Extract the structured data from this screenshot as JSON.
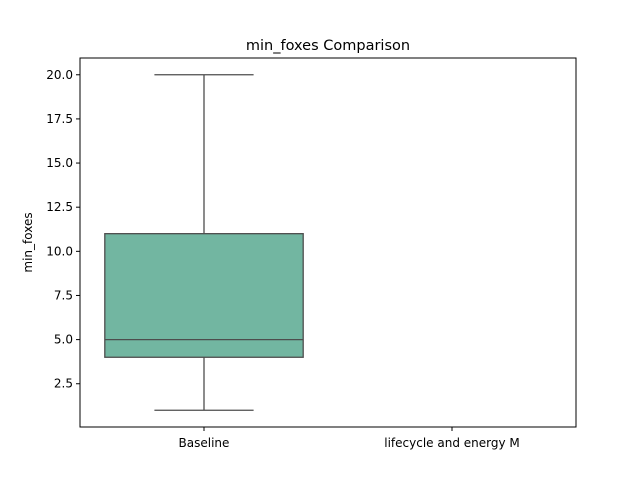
{
  "chart_data": {
    "type": "box",
    "title": "min_foxes Comparison",
    "xlabel": "",
    "ylabel": "min_foxes",
    "ylim": [
      0.05,
      20.95
    ],
    "categories": [
      "Baseline",
      "lifecycle and energy M"
    ],
    "yticks": [
      2.5,
      5.0,
      7.5,
      10.0,
      12.5,
      15.0,
      17.5,
      20.0
    ],
    "ytick_labels": [
      "2.5",
      "5.0",
      "7.5",
      "10.0",
      "12.5",
      "15.0",
      "17.5",
      "20.0"
    ],
    "boxes": [
      {
        "category": "Baseline",
        "whisker_low": 1.0,
        "q1": 4.0,
        "median": 5.0,
        "q3": 11.0,
        "whisker_high": 20.0
      }
    ],
    "grid": false,
    "colors": {
      "box_fill": "#72b6a1",
      "box_edge": "#4d4d4d"
    }
  }
}
